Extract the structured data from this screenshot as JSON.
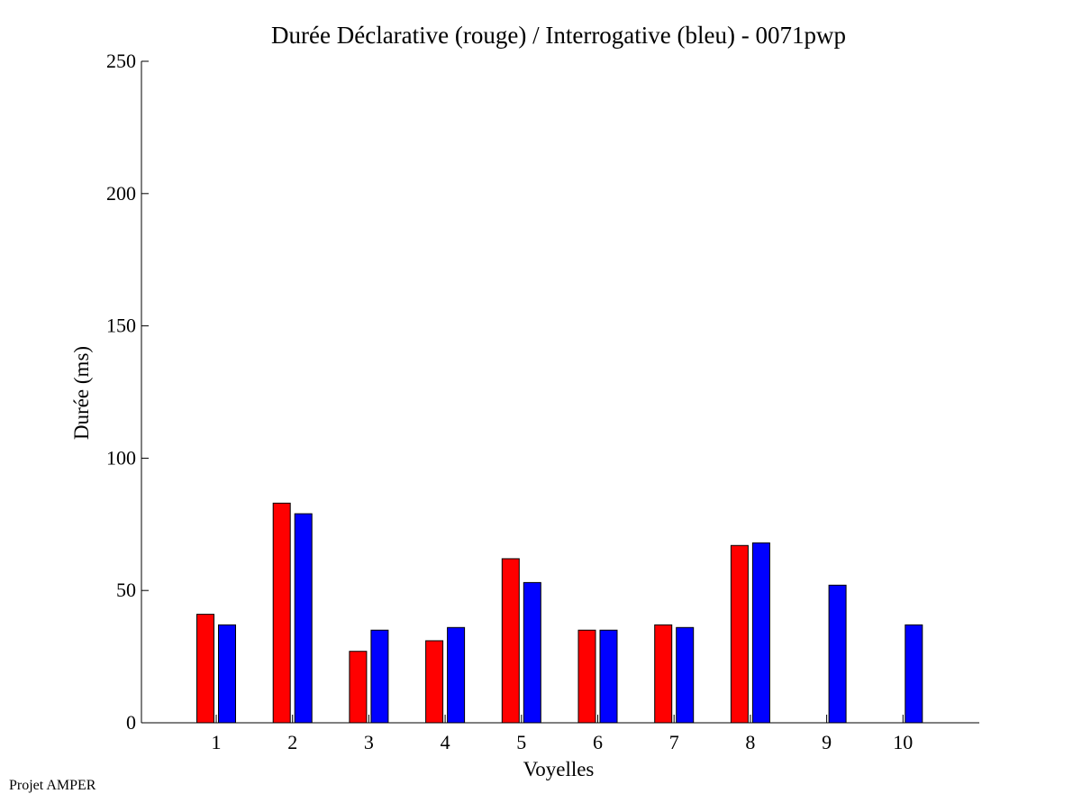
{
  "footer": "Projet AMPER",
  "colors": {
    "declarative": "#ff0000",
    "interrogative": "#0000ff",
    "axis": "#000000"
  },
  "chart_data": {
    "type": "bar",
    "title": "Durée Déclarative (rouge) / Interrogative (bleu) - 0071pwp",
    "xlabel": "Voyelles",
    "ylabel": "Durée (ms)",
    "ylim": [
      0,
      250
    ],
    "yticks": [
      0,
      50,
      100,
      150,
      200,
      250
    ],
    "categories": [
      "1",
      "2",
      "3",
      "4",
      "5",
      "6",
      "7",
      "8",
      "9",
      "10"
    ],
    "grid": false,
    "series": [
      {
        "color": "#ff0000",
        "values": [
          41,
          83,
          27,
          31,
          62,
          35,
          37,
          67,
          null,
          null
        ]
      },
      {
        "color": "#0000ff",
        "values": [
          37,
          79,
          35,
          36,
          53,
          35,
          36,
          68,
          52,
          37
        ]
      }
    ]
  }
}
